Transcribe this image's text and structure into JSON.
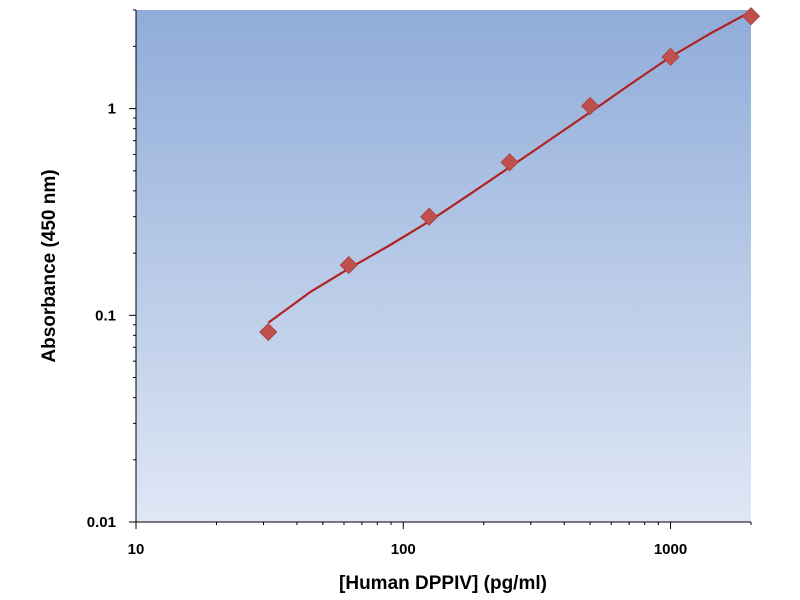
{
  "chart_data": {
    "type": "scatter",
    "title": "",
    "xlabel": "[Human DPPIV] (pg/ml)",
    "ylabel": "Absorbance (450 nm)",
    "x_scale": "log",
    "y_scale": "log",
    "xlim": [
      10,
      2000
    ],
    "ylim": [
      0.01,
      3
    ],
    "x_ticks": [
      {
        "value": 10,
        "label": "10"
      },
      {
        "value": 100,
        "label": "100"
      },
      {
        "value": 1000,
        "label": "1000"
      }
    ],
    "y_ticks": [
      {
        "value": 0.01,
        "label": "0.01"
      },
      {
        "value": 0.1,
        "label": "0.1"
      },
      {
        "value": 1,
        "label": "1"
      }
    ],
    "grid": false,
    "legend": "none",
    "series": [
      {
        "marker": "diamond",
        "x": [
          31.25,
          62.5,
          125,
          250,
          500,
          1000,
          2000
        ],
        "y": [
          0.083,
          0.175,
          0.3,
          0.55,
          1.03,
          1.78,
          2.8
        ]
      }
    ],
    "fit_curve": {
      "x": [
        31.25,
        45,
        62.5,
        90,
        125,
        180,
        250,
        350,
        500,
        700,
        1000,
        1400,
        2000
      ],
      "y": [
        0.092,
        0.13,
        0.168,
        0.22,
        0.285,
        0.39,
        0.52,
        0.7,
        0.96,
        1.3,
        1.78,
        2.3,
        2.95
      ]
    },
    "colors": {
      "marker": "#c0504d",
      "curve": "#b22222",
      "plot_bg_top": "#8facd9",
      "plot_bg_bottom": "#dfe7f5",
      "axis": "#000000"
    }
  }
}
